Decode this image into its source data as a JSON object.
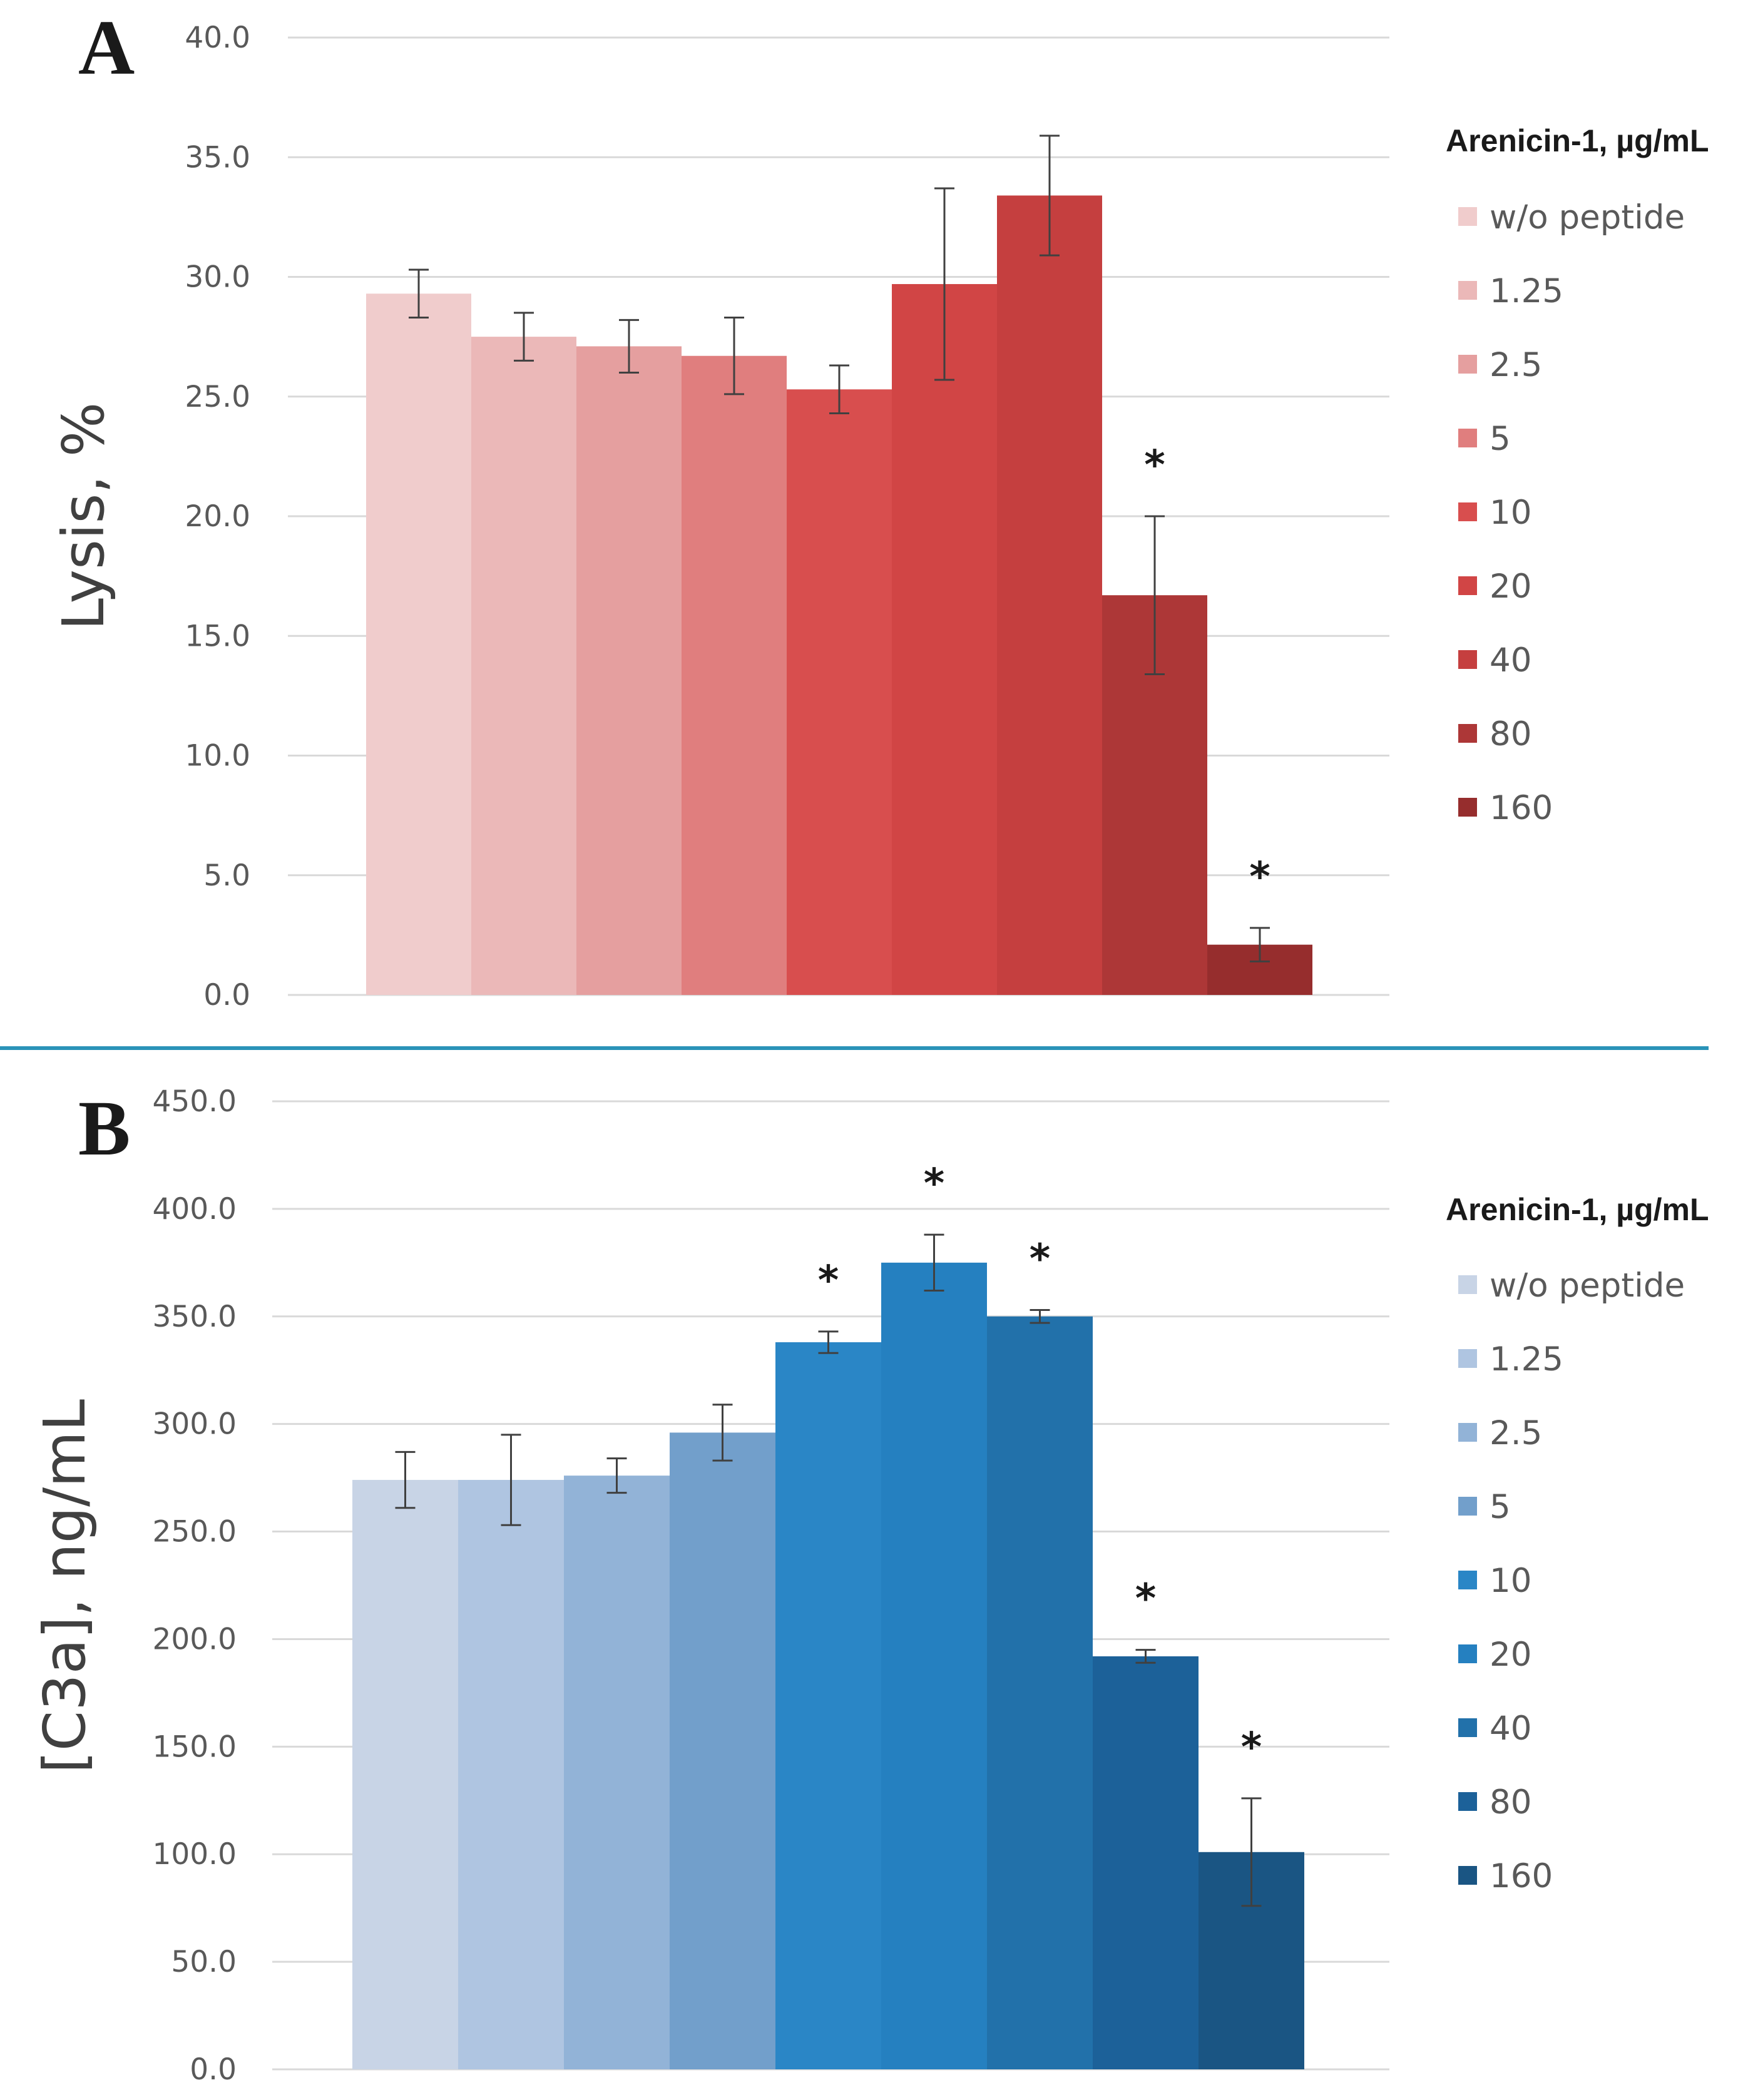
{
  "chart_data": [
    {
      "type": "bar",
      "panel": "A",
      "ylabel": "Lysis, %",
      "ylim": [
        0,
        40
      ],
      "yticks": [
        "0.0",
        "5.0",
        "10.0",
        "15.0",
        "20.0",
        "25.0",
        "30.0",
        "35.0",
        "40.0"
      ],
      "grid": true,
      "legend_title": "Arenicin-1, µg/mL",
      "legend_position": "right",
      "categories": [
        "w/o peptide",
        "1.25",
        "2.5",
        "5",
        "10",
        "20",
        "40",
        "80",
        "160"
      ],
      "values": [
        29.3,
        27.5,
        27.1,
        26.7,
        25.3,
        29.7,
        33.4,
        16.7,
        2.1
      ],
      "errors": [
        1.0,
        1.0,
        1.1,
        1.6,
        1.0,
        4.0,
        2.5,
        3.3,
        0.7
      ],
      "significant": [
        false,
        false,
        false,
        false,
        false,
        false,
        false,
        true,
        true
      ],
      "significance_marker": "*",
      "colors": [
        "#f0cccc",
        "#ebb8b8",
        "#e59f9f",
        "#e07e7e",
        "#d84e4e",
        "#d14545",
        "#c53f3f",
        "#ad3737",
        "#962d2d"
      ]
    },
    {
      "type": "bar",
      "panel": "B",
      "ylabel": "[C3a], ng/mL",
      "ylim": [
        0,
        450
      ],
      "yticks": [
        "0.0",
        "50.0",
        "100.0",
        "150.0",
        "200.0",
        "250.0",
        "300.0",
        "350.0",
        "400.0",
        "450.0"
      ],
      "grid": true,
      "legend_title": "Arenicin-1, µg/mL",
      "legend_position": "right",
      "categories": [
        "w/o peptide",
        "1.25",
        "2.5",
        "5",
        "10",
        "20",
        "40",
        "80",
        "160"
      ],
      "values": [
        274,
        274,
        276,
        296,
        338,
        375,
        350,
        192,
        101
      ],
      "errors": [
        13,
        21,
        8,
        13,
        5,
        13,
        3,
        3,
        25
      ],
      "significant": [
        false,
        false,
        false,
        false,
        true,
        true,
        true,
        true,
        true
      ],
      "significance_marker": "*",
      "colors": [
        "#c8d4e6",
        "#afc5e1",
        "#92b3d7",
        "#729fcb",
        "#2a86c6",
        "#2580c0",
        "#2271aa",
        "#1c6199",
        "#1a5583"
      ]
    }
  ]
}
